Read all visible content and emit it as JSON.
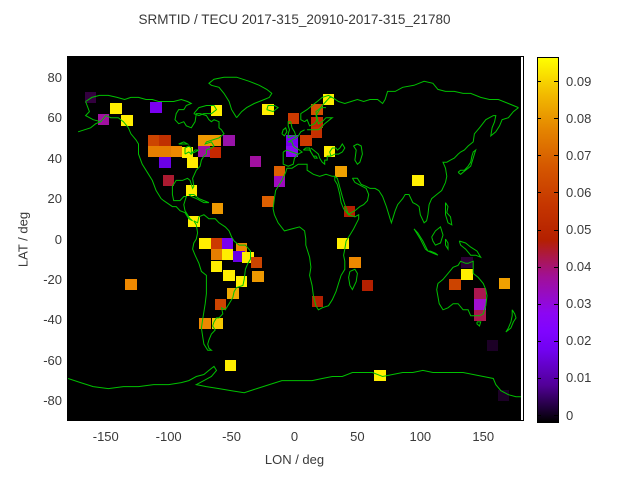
{
  "title": "SRMTID / TECU 2017-315_20910-2017-315_21780",
  "axes": {
    "x": {
      "label": "LON / deg",
      "range": [
        -180,
        180
      ],
      "ticks": [
        -150,
        -100,
        -50,
        0,
        50,
        100,
        150
      ]
    },
    "y": {
      "label": "LAT / deg",
      "range": [
        -90,
        90
      ],
      "ticks": [
        80,
        60,
        40,
        20,
        0,
        -20,
        -40,
        -60,
        -80
      ]
    }
  },
  "colorbar": {
    "min": 0,
    "max": 0.0965,
    "tick_labels": [
      "0",
      "0.01",
      "0.02",
      "0.03",
      "0.04",
      "0.05",
      "0.06",
      "0.07",
      "0.08",
      "0.09"
    ],
    "palette": "gnuplot pm3d black-purple-red-orange-yellow"
  },
  "colors": {
    "background": "#ffffff",
    "plot_background": "#000000",
    "coastline": "#00c000",
    "border": "#000000",
    "text": "#3a3a3a"
  },
  "chart_data": {
    "type": "heatmap",
    "title": "SRMTID / TECU 2017-315_20910-2017-315_21780",
    "xlabel": "LON / deg",
    "ylabel": "LAT / deg",
    "value_label": "TECU",
    "x_range": [
      -180,
      180
    ],
    "y_range": [
      -90,
      90
    ],
    "value_range": [
      0,
      0.0965
    ],
    "cell_size_deg": {
      "lon": 9,
      "lat": 5.5
    },
    "cells": [
      {
        "lon": -162,
        "lat": 70,
        "value": 0.004,
        "color": "#33003e"
      },
      {
        "lon": -142,
        "lat": 64.5,
        "value": 0.094,
        "color": "#ffee00"
      },
      {
        "lon": -152,
        "lat": 59,
        "value": 0.039,
        "color": "#a110a0"
      },
      {
        "lon": -133,
        "lat": 58.5,
        "value": 0.094,
        "color": "#ffee00"
      },
      {
        "lon": -110,
        "lat": 65,
        "value": 0.025,
        "color": "#7a00f0"
      },
      {
        "lon": -62,
        "lat": 63.5,
        "value": 0.093,
        "color": "#ffee00"
      },
      {
        "lon": -112,
        "lat": 48.5,
        "value": 0.063,
        "color": "#cc4400"
      },
      {
        "lon": -103,
        "lat": 48.5,
        "value": 0.058,
        "color": "#c03000"
      },
      {
        "lon": -72,
        "lat": 48.5,
        "value": 0.079,
        "color": "#ee9900"
      },
      {
        "lon": -63,
        "lat": 48.5,
        "value": 0.078,
        "color": "#ee9900"
      },
      {
        "lon": -52,
        "lat": 48.5,
        "value": 0.037,
        "color": "#9913a9"
      },
      {
        "lon": -112,
        "lat": 43.5,
        "value": 0.074,
        "color": "#e67e00"
      },
      {
        "lon": -103,
        "lat": 43.5,
        "value": 0.074,
        "color": "#e67e00"
      },
      {
        "lon": -94,
        "lat": 43.5,
        "value": 0.076,
        "color": "#ee8800"
      },
      {
        "lon": -85,
        "lat": 43,
        "value": 0.094,
        "color": "#ffee00"
      },
      {
        "lon": -72,
        "lat": 43.5,
        "value": 0.039,
        "color": "#a110a0"
      },
      {
        "lon": -63,
        "lat": 43,
        "value": 0.055,
        "color": "#c52800"
      },
      {
        "lon": -81,
        "lat": 38,
        "value": 0.094,
        "color": "#ffee00"
      },
      {
        "lon": -103,
        "lat": 38,
        "value": 0.023,
        "color": "#6a00e6"
      },
      {
        "lon": -100,
        "lat": 29,
        "value": 0.045,
        "color": "#ab1a30"
      },
      {
        "lon": -82,
        "lat": 24,
        "value": 0.094,
        "color": "#ffee00"
      },
      {
        "lon": -61,
        "lat": 15,
        "value": 0.079,
        "color": "#ee9900"
      },
      {
        "lon": -21,
        "lat": 64,
        "value": 0.094,
        "color": "#ffee00"
      },
      {
        "lon": 27,
        "lat": 69,
        "value": 0.094,
        "color": "#ffee00"
      },
      {
        "lon": 18,
        "lat": 64,
        "value": 0.066,
        "color": "#d45000"
      },
      {
        "lon": -1,
        "lat": 59.5,
        "value": 0.061,
        "color": "#cc3a00"
      },
      {
        "lon": 18,
        "lat": 57.5,
        "value": 0.055,
        "color": "#c52800"
      },
      {
        "lon": 17.5,
        "lat": 52.5,
        "value": 0.056,
        "color": "#c53000"
      },
      {
        "lon": -2,
        "lat": 48.5,
        "value": 0.025,
        "color": "#7a00f0"
      },
      {
        "lon": -2,
        "lat": 43.5,
        "value": 0.029,
        "color": "#8c07f2"
      },
      {
        "lon": 9,
        "lat": 48.5,
        "value": 0.061,
        "color": "#cc3a00"
      },
      {
        "lon": -31,
        "lat": 38.5,
        "value": 0.039,
        "color": "#a110a0"
      },
      {
        "lon": 28,
        "lat": 43.5,
        "value": 0.093,
        "color": "#ffee00"
      },
      {
        "lon": 37,
        "lat": 33.5,
        "value": 0.081,
        "color": "#f0a000"
      },
      {
        "lon": -12,
        "lat": 33.5,
        "value": 0.069,
        "color": "#dd5f00"
      },
      {
        "lon": -12,
        "lat": 28.5,
        "value": 0.035,
        "color": "#a009c0"
      },
      {
        "lon": -21,
        "lat": 18.5,
        "value": 0.069,
        "color": "#dd5f00"
      },
      {
        "lon": 43.5,
        "lat": 13.5,
        "value": 0.048,
        "color": "#b42000"
      },
      {
        "lon": 38.5,
        "lat": -2,
        "value": 0.093,
        "color": "#ffee00"
      },
      {
        "lon": 48,
        "lat": -11.5,
        "value": 0.076,
        "color": "#ee8800"
      },
      {
        "lon": 58,
        "lat": -23,
        "value": 0.048,
        "color": "#b42000"
      },
      {
        "lon": 18.5,
        "lat": -31,
        "value": 0.049,
        "color": "#b42000"
      },
      {
        "lon": -80,
        "lat": 8.5,
        "value": 0.094,
        "color": "#ffee00"
      },
      {
        "lon": -71,
        "lat": -2,
        "value": 0.094,
        "color": "#ffee00"
      },
      {
        "lon": -62,
        "lat": -2,
        "value": 0.062,
        "color": "#cc3a00"
      },
      {
        "lon": -53,
        "lat": -2,
        "value": 0.025,
        "color": "#7a00f0"
      },
      {
        "lon": -42,
        "lat": -4.5,
        "value": 0.077,
        "color": "#ee8800"
      },
      {
        "lon": -62,
        "lat": -7.5,
        "value": 0.074,
        "color": "#e67e00"
      },
      {
        "lon": -53,
        "lat": -7.5,
        "value": 0.093,
        "color": "#ffee00"
      },
      {
        "lon": -44,
        "lat": -8.5,
        "value": 0.023,
        "color": "#6a00e6"
      },
      {
        "lon": -37,
        "lat": -9,
        "value": 0.092,
        "color": "#ffee00"
      },
      {
        "lon": -30,
        "lat": -11.5,
        "value": 0.063,
        "color": "#cc4400"
      },
      {
        "lon": -62,
        "lat": -13.5,
        "value": 0.094,
        "color": "#ffee00"
      },
      {
        "lon": -52,
        "lat": -18,
        "value": 0.093,
        "color": "#ffee00"
      },
      {
        "lon": -42,
        "lat": -21,
        "value": 0.094,
        "color": "#ffee00"
      },
      {
        "lon": -29,
        "lat": -18.5,
        "value": 0.079,
        "color": "#ee9900"
      },
      {
        "lon": -49,
        "lat": -27,
        "value": 0.082,
        "color": "#eeaa00"
      },
      {
        "lon": -59,
        "lat": -32.5,
        "value": 0.064,
        "color": "#cc4400"
      },
      {
        "lon": -71,
        "lat": -42,
        "value": 0.077,
        "color": "#ee8800"
      },
      {
        "lon": -61,
        "lat": -42,
        "value": 0.088,
        "color": "#f5c800"
      },
      {
        "lon": -130,
        "lat": -22.5,
        "value": 0.076,
        "color": "#ee8800"
      },
      {
        "lon": 98,
        "lat": 29,
        "value": 0.094,
        "color": "#ffee00"
      },
      {
        "lon": 137,
        "lat": -11.5,
        "value": 0.004,
        "color": "#2a0034"
      },
      {
        "lon": 137,
        "lat": -17.5,
        "value": 0.094,
        "color": "#ffee00"
      },
      {
        "lon": 127.5,
        "lat": -22.5,
        "value": 0.063,
        "color": "#cc4400"
      },
      {
        "lon": 167,
        "lat": -22,
        "value": 0.081,
        "color": "#f0a000"
      },
      {
        "lon": 147.5,
        "lat": -27,
        "value": 0.043,
        "color": "#ab174f"
      },
      {
        "lon": 147.5,
        "lat": -32.5,
        "value": 0.036,
        "color": "#a010d0"
      },
      {
        "lon": 147.5,
        "lat": -38,
        "value": 0.042,
        "color": "#ab174f"
      },
      {
        "lon": 157.5,
        "lat": -52.5,
        "value": 0.002,
        "color": "#1c0026"
      },
      {
        "lon": -51,
        "lat": -62.5,
        "value": 0.093,
        "color": "#ffee00"
      },
      {
        "lon": 68,
        "lat": -67.5,
        "value": 0.093,
        "color": "#ffee00"
      },
      {
        "lon": 166,
        "lat": -77.5,
        "value": 0.002,
        "color": "#1c0026"
      }
    ]
  }
}
